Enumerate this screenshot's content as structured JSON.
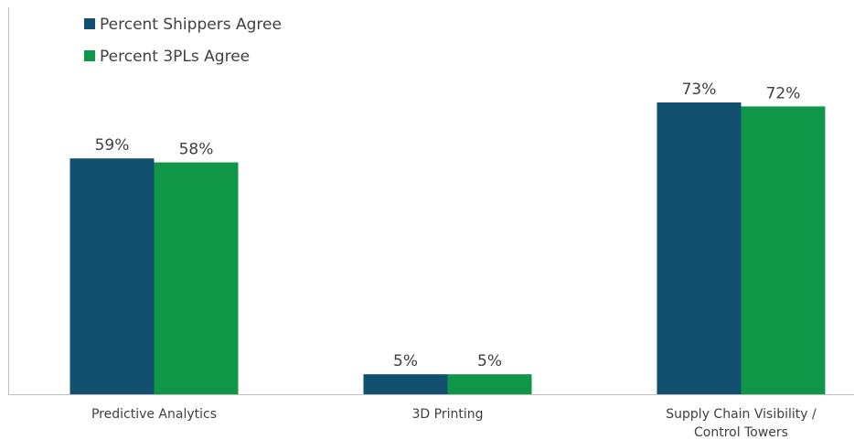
{
  "chart_data": {
    "type": "bar",
    "categories": [
      "Predictive Analytics",
      "3D Printing",
      "Supply Chain Visibility / Control Towers"
    ],
    "category_lines": [
      [
        "Predictive Analytics"
      ],
      [
        "3D Printing"
      ],
      [
        "Supply Chain Visibility /",
        "Control Towers"
      ]
    ],
    "series": [
      {
        "name": "Percent Shippers Agree",
        "values": [
          59,
          5,
          73
        ],
        "labels": [
          "59%",
          "5%",
          "73%"
        ],
        "color": "#11516f"
      },
      {
        "name": "Percent 3PLs Agree",
        "values": [
          58,
          5,
          72
        ],
        "labels": [
          "58%",
          "5%",
          "72%"
        ],
        "color": "#0f9747"
      }
    ],
    "ylim": [
      0,
      80
    ],
    "grid": false,
    "legend_position": "top-left"
  }
}
